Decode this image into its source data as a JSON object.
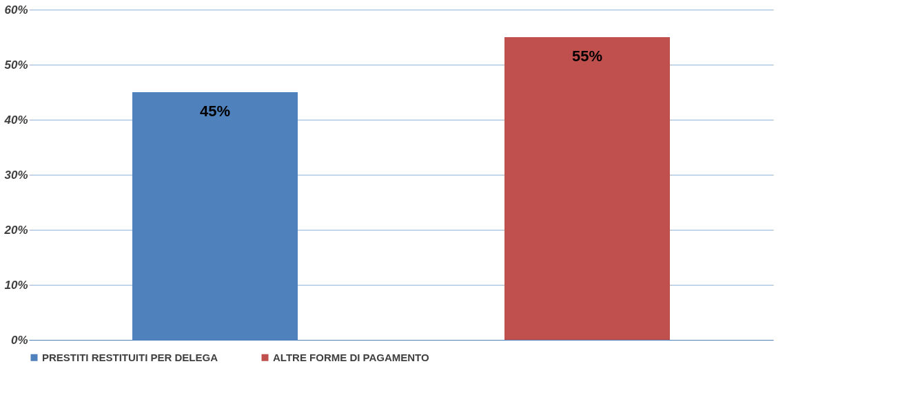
{
  "chart_data": {
    "type": "bar",
    "categories": [
      null
    ],
    "series": [
      {
        "name": "PRESTITI RESTITUITI PER DELEGA",
        "color": "#4f81bd",
        "values": [
          45
        ]
      },
      {
        "name": "ALTRE FORME DI PAGAMENTO",
        "color": "#c0504d",
        "values": [
          55
        ]
      }
    ],
    "ylim": [
      0,
      60
    ],
    "yticks": [
      {
        "value": 0,
        "label": "0%"
      },
      {
        "value": 10,
        "label": "10%"
      },
      {
        "value": 20,
        "label": "20%"
      },
      {
        "value": 30,
        "label": "30%"
      },
      {
        "value": 40,
        "label": "40%"
      },
      {
        "value": 50,
        "label": "50%"
      },
      {
        "value": 60,
        "label": "60%"
      }
    ],
    "value_labels": [
      [
        "45%"
      ],
      [
        "55%"
      ]
    ],
    "grid": true,
    "legend": "bottom",
    "tick_labels": "y"
  }
}
